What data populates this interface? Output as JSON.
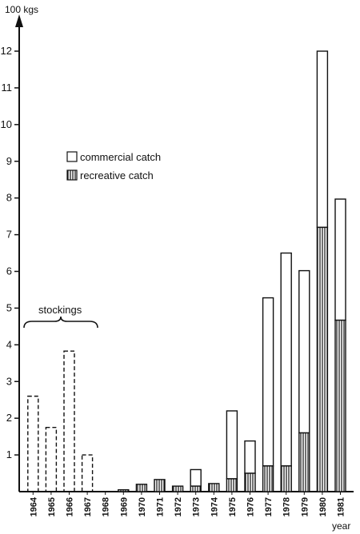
{
  "chart_data": {
    "type": "bar",
    "y_unit_label": "100 kgs",
    "x_unit_label": "year",
    "ylim": [
      0,
      13
    ],
    "yticks": [
      1,
      2,
      3,
      4,
      5,
      6,
      7,
      8,
      9,
      10,
      11,
      12
    ],
    "categories": [
      "1964",
      "1965",
      "1966",
      "1967",
      "1968",
      "1969",
      "1970",
      "1971",
      "1972",
      "1973",
      "1974",
      "1975",
      "1976",
      "1977",
      "1978",
      "1979",
      "1980",
      "1981"
    ],
    "legend": {
      "commercial": "commercial catch",
      "recreative": "recreative catch"
    },
    "stockings": {
      "label": "stockings",
      "categories": [
        "1964",
        "1965",
        "1966",
        "1967"
      ],
      "values": [
        2.6,
        1.75,
        3.83,
        1.0
      ]
    },
    "series": [
      {
        "name": "recreative catch",
        "values": [
          0,
          0,
          0,
          0,
          0,
          0.05,
          0.2,
          0.33,
          0.15,
          0.15,
          0.22,
          0.35,
          0.5,
          0.7,
          0.7,
          1.6,
          7.2,
          4.67
        ]
      },
      {
        "name": "commercial catch",
        "values": [
          0,
          0,
          0,
          0,
          0,
          0,
          0,
          0,
          0,
          0.45,
          0,
          1.85,
          0.88,
          4.58,
          5.8,
          4.42,
          4.8,
          3.3
        ]
      }
    ],
    "grid": false,
    "legend_placement": "upper-left"
  }
}
